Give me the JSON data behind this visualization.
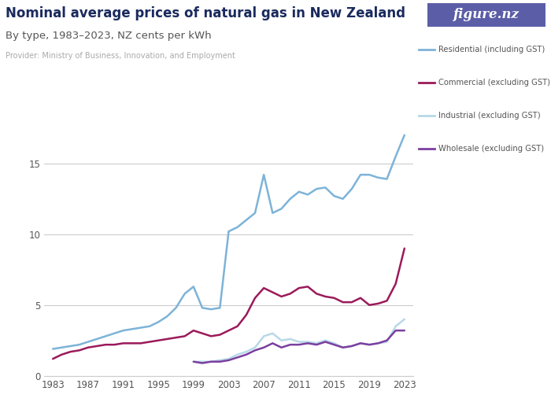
{
  "title": "Nominal average prices of natural gas in New Zealand",
  "subtitle": "By type, 1983–2023, NZ cents per kWh",
  "provider": "Provider: Ministry of Business, Innovation, and Employment",
  "logo_text": "figure.nz",
  "logo_bg": "#5b5ea6",
  "background_color": "#ffffff",
  "legend": [
    {
      "label": "Residential (including GST)",
      "color": "#7db3d8"
    },
    {
      "label": "Commercial (excluding GST)",
      "color": "#9b1a5a"
    },
    {
      "label": "Industrial (excluding GST)",
      "color": "#b8d8e8"
    },
    {
      "label": "Wholesale (excluding GST)",
      "color": "#7b3fa0"
    }
  ],
  "years_residential": [
    1983,
    1984,
    1985,
    1986,
    1987,
    1988,
    1989,
    1990,
    1991,
    1992,
    1993,
    1994,
    1995,
    1996,
    1997,
    1998,
    1999,
    2000,
    2001,
    2002,
    2003,
    2004,
    2005,
    2006,
    2007,
    2008,
    2009,
    2010,
    2011,
    2012,
    2013,
    2014,
    2015,
    2016,
    2017,
    2018,
    2019,
    2020,
    2021,
    2022,
    2023
  ],
  "residential": [
    1.9,
    2.0,
    2.1,
    2.2,
    2.4,
    2.6,
    2.8,
    3.0,
    3.2,
    3.3,
    3.4,
    3.5,
    3.8,
    4.2,
    4.8,
    5.8,
    6.3,
    4.8,
    4.7,
    4.8,
    10.2,
    10.5,
    11.0,
    11.5,
    14.2,
    11.5,
    11.8,
    12.5,
    13.0,
    12.8,
    13.2,
    13.3,
    12.7,
    12.5,
    13.2,
    14.2,
    14.2,
    14.0,
    13.9,
    15.5,
    17.0
  ],
  "years_commercial": [
    1983,
    1984,
    1985,
    1986,
    1987,
    1988,
    1989,
    1990,
    1991,
    1992,
    1993,
    1994,
    1995,
    1996,
    1997,
    1998,
    1999,
    2000,
    2001,
    2002,
    2003,
    2004,
    2005,
    2006,
    2007,
    2008,
    2009,
    2010,
    2011,
    2012,
    2013,
    2014,
    2015,
    2016,
    2017,
    2018,
    2019,
    2020,
    2021,
    2022,
    2023
  ],
  "commercial": [
    1.2,
    1.5,
    1.7,
    1.8,
    2.0,
    2.1,
    2.2,
    2.2,
    2.3,
    2.3,
    2.3,
    2.4,
    2.5,
    2.6,
    2.7,
    2.8,
    3.2,
    3.0,
    2.8,
    2.9,
    3.2,
    3.5,
    4.3,
    5.5,
    6.2,
    5.9,
    5.6,
    5.8,
    6.2,
    6.3,
    5.8,
    5.6,
    5.5,
    5.2,
    5.2,
    5.5,
    5.0,
    5.1,
    5.3,
    6.5,
    9.0
  ],
  "years_industrial": [
    1999,
    2000,
    2001,
    2002,
    2003,
    2004,
    2005,
    2006,
    2007,
    2008,
    2009,
    2010,
    2011,
    2012,
    2013,
    2014,
    2015,
    2016,
    2017,
    2018,
    2019,
    2020,
    2021,
    2022,
    2023
  ],
  "industrial": [
    1.0,
    1.0,
    1.0,
    1.1,
    1.2,
    1.5,
    1.7,
    2.0,
    2.8,
    3.0,
    2.5,
    2.6,
    2.4,
    2.4,
    2.3,
    2.5,
    2.3,
    2.0,
    2.1,
    2.3,
    2.2,
    2.3,
    2.4,
    3.5,
    4.0
  ],
  "years_wholesale": [
    1999,
    2000,
    2001,
    2002,
    2003,
    2004,
    2005,
    2006,
    2007,
    2008,
    2009,
    2010,
    2011,
    2012,
    2013,
    2014,
    2015,
    2016,
    2017,
    2018,
    2019,
    2020,
    2021,
    2022,
    2023
  ],
  "wholesale": [
    1.0,
    0.9,
    1.0,
    1.0,
    1.1,
    1.3,
    1.5,
    1.8,
    2.0,
    2.3,
    2.0,
    2.2,
    2.2,
    2.3,
    2.2,
    2.4,
    2.2,
    2.0,
    2.1,
    2.3,
    2.2,
    2.3,
    2.5,
    3.2,
    3.2
  ],
  "ylim": [
    0,
    17.5
  ],
  "yticks": [
    0,
    5,
    10,
    15
  ],
  "xticks": [
    1983,
    1987,
    1991,
    1995,
    1999,
    2003,
    2007,
    2011,
    2015,
    2019,
    2023
  ],
  "xlim": [
    1982,
    2024
  ],
  "title_color": "#1a2a5e",
  "subtitle_color": "#555555",
  "provider_color": "#aaaaaa",
  "grid_color": "#cccccc",
  "tick_color": "#555555"
}
